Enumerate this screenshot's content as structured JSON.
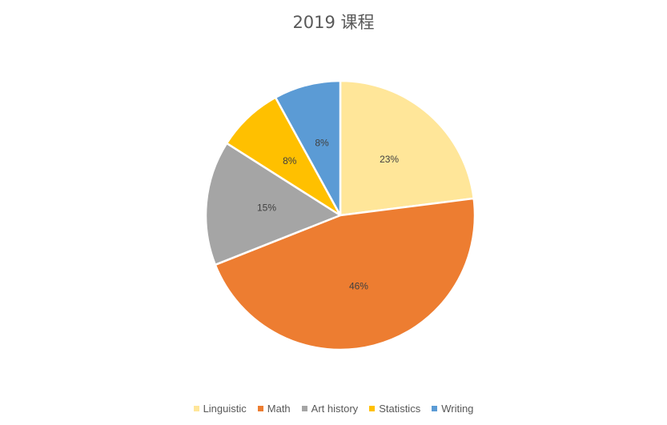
{
  "chart_data": {
    "type": "pie",
    "title": "2019 课程",
    "categories": [
      "Linguistic",
      "Math",
      "Art history",
      "Statistics",
      "Writing"
    ],
    "values": [
      23,
      46,
      15,
      8,
      8
    ],
    "labels": [
      "23%",
      "46%",
      "15%",
      "8%",
      "8%"
    ],
    "colors": [
      "#FFE699",
      "#ED7D31",
      "#A5A5A5",
      "#FFC000",
      "#5B9BD5"
    ],
    "legend_position": "bottom",
    "start_angle_degrees": 0,
    "direction": "clockwise"
  }
}
